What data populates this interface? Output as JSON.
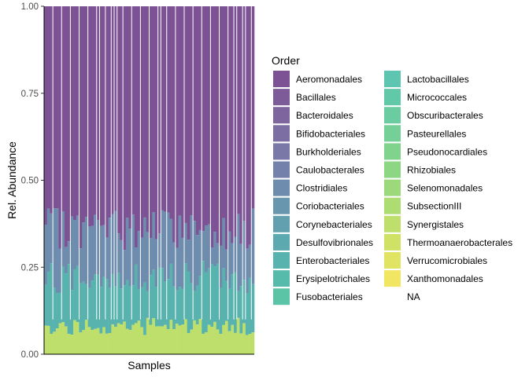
{
  "chart_data": {
    "type": "bar",
    "stacked": true,
    "xlabel": "Samples",
    "ylabel": "Rel. Abundance",
    "ylim": [
      0,
      1
    ],
    "y_ticks": [
      "0.00",
      "0.25",
      "0.50",
      "0.75",
      "1.00"
    ],
    "x_tick_labels": "none",
    "grid": false,
    "sample_count": 72,
    "legend": {
      "title": "Order",
      "placement": "right",
      "columns": 2,
      "entries": [
        {
          "name": "Aeromonadales",
          "color": "#7c5295"
        },
        {
          "name": "Bacillales",
          "color": "#7d5b99"
        },
        {
          "name": "Bacteroidales",
          "color": "#7e659e"
        },
        {
          "name": "Bifidobacteriales",
          "color": "#7c6ea3"
        },
        {
          "name": "Burkholderiales",
          "color": "#7978a7"
        },
        {
          "name": "Caulobacterales",
          "color": "#7482ab"
        },
        {
          "name": "Clostridiales",
          "color": "#6e8cad"
        },
        {
          "name": "Coriobacteriales",
          "color": "#6896af"
        },
        {
          "name": "Corynebacteriales",
          "color": "#62a0b0"
        },
        {
          "name": "Desulfovibrionales",
          "color": "#5ca9b0"
        },
        {
          "name": "Enterobacteriales",
          "color": "#58b2ae"
        },
        {
          "name": "Erysipelotrichales",
          "color": "#57bbab"
        },
        {
          "name": "Fusobacteriales",
          "color": "#5bc3a6"
        },
        {
          "name": "Lactobacillales",
          "color": "#5ec5b0"
        },
        {
          "name": "Micrococcales",
          "color": "#62c9a8"
        },
        {
          "name": "Obscuribacterales",
          "color": "#6acca0"
        },
        {
          "name": "Pasteurellales",
          "color": "#74d097"
        },
        {
          "name": "Pseudonocardiales",
          "color": "#80d38d"
        },
        {
          "name": "Rhizobiales",
          "color": "#8dd683"
        },
        {
          "name": "Selenomonadales",
          "color": "#9cd97a"
        },
        {
          "name": "SubsectionIII",
          "color": "#acdc72"
        },
        {
          "name": "Synergistales",
          "color": "#bedf6b"
        },
        {
          "name": "Thermoanaerobacterales",
          "color": "#d0e265"
        },
        {
          "name": "Verrucomicrobiales",
          "color": "#e1e463"
        },
        {
          "name": "Xanthomonadales",
          "color": "#f1e661"
        },
        {
          "name": "NA",
          "color": ""
        }
      ]
    },
    "bands": [
      {
        "order": "Aeromonadales",
        "upper_mean": 1.0,
        "lower_mean": 0.36
      },
      {
        "order": "Clostridiales",
        "upper_mean": 0.36,
        "lower_mean": 0.22
      },
      {
        "order": "Enterobacteriales",
        "upper_mean": 0.22,
        "lower_mean": 0.08
      },
      {
        "order": "Synergistales",
        "upper_mean": 0.08,
        "lower_mean": 0.0
      }
    ]
  }
}
